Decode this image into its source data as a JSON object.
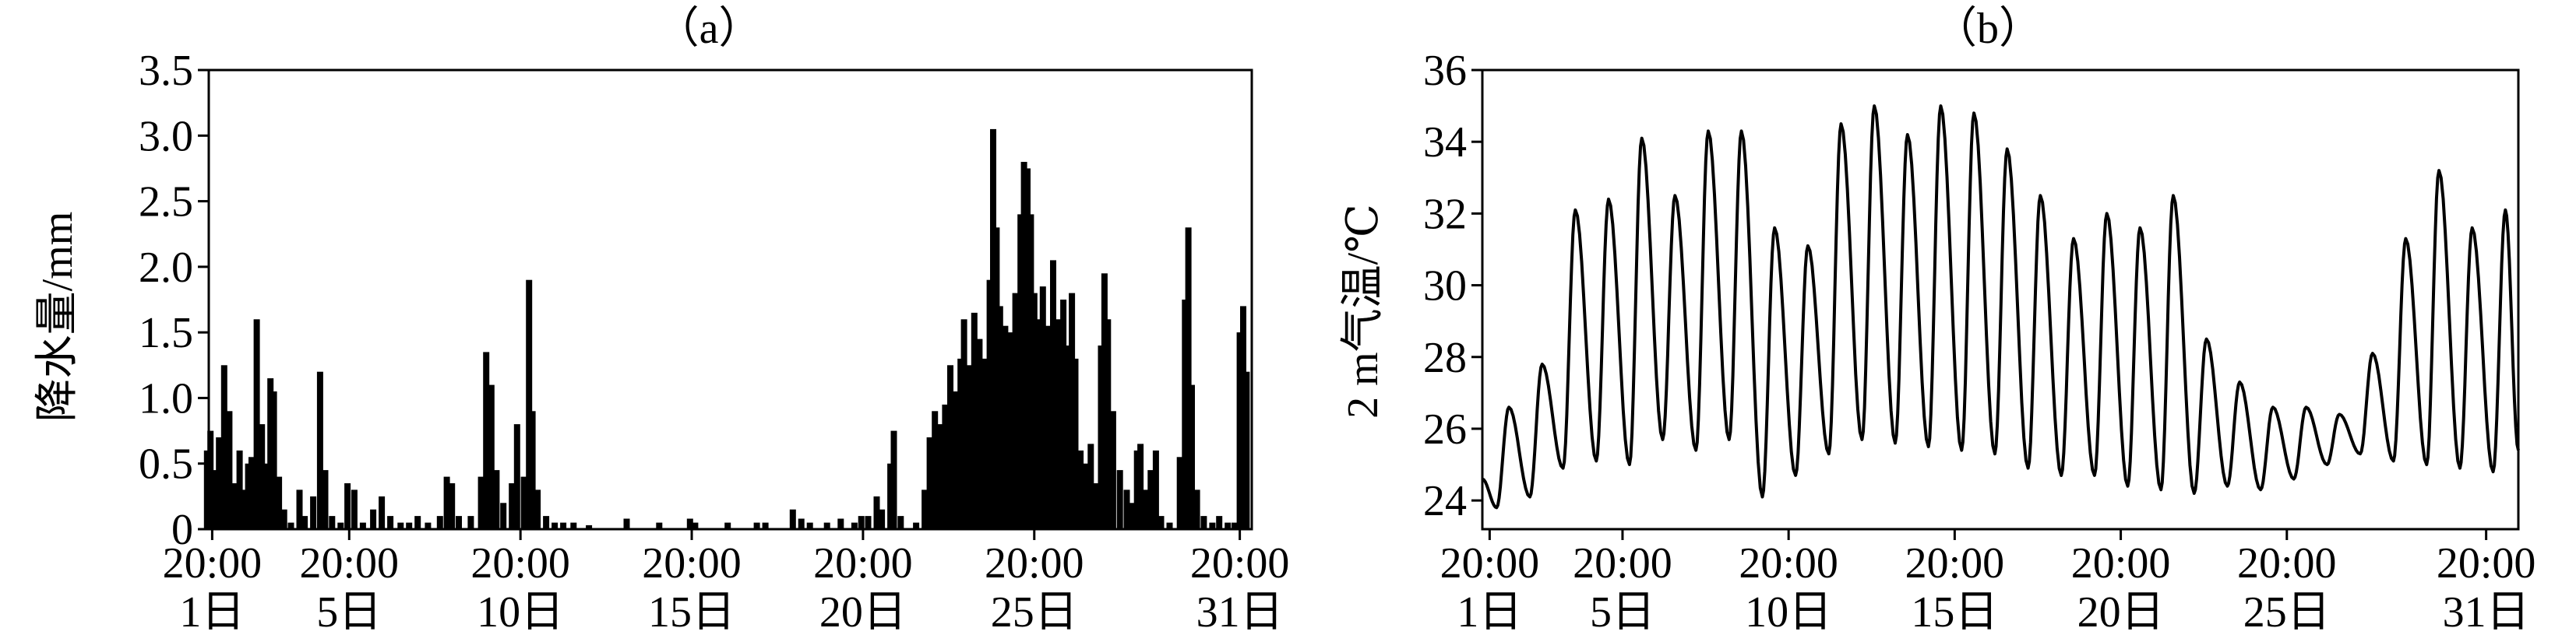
{
  "chart_data": [
    {
      "type": "bar",
      "panel_label": "（a）",
      "ylabel": "降水量/mm",
      "ylim": [
        0,
        3.5
      ],
      "yticks": [
        "0",
        "0.5",
        "1.0",
        "1.5",
        "2.0",
        "2.5",
        "3.0",
        "3.5"
      ],
      "xticks": [
        {
          "day": 1,
          "time": "20:00",
          "date": "1日"
        },
        {
          "day": 5,
          "time": "20:00",
          "date": "5日"
        },
        {
          "day": 10,
          "time": "20:00",
          "date": "10日"
        },
        {
          "day": 15,
          "time": "20:00",
          "date": "15日"
        },
        {
          "day": 20,
          "time": "20:00",
          "date": "20日"
        },
        {
          "day": 25,
          "time": "20:00",
          "date": "25日"
        },
        {
          "day": 31,
          "time": "20:00",
          "date": "31日"
        }
      ],
      "series": [
        {
          "values": [
            [
              0.85,
              0.6
            ],
            [
              0.95,
              0.75
            ],
            [
              1.05,
              0.45
            ],
            [
              1.2,
              0.7
            ],
            [
              1.35,
              1.25
            ],
            [
              1.5,
              0.9
            ],
            [
              1.65,
              0.35
            ],
            [
              1.8,
              0.6
            ],
            [
              1.95,
              0.3
            ],
            [
              2.05,
              0.5
            ],
            [
              2.15,
              0.55
            ],
            [
              2.3,
              1.6
            ],
            [
              2.45,
              0.8
            ],
            [
              2.6,
              0.5
            ],
            [
              2.7,
              1.15
            ],
            [
              2.8,
              1.05
            ],
            [
              2.95,
              0.4
            ],
            [
              3.1,
              0.15
            ],
            [
              3.3,
              0.05
            ],
            [
              3.55,
              0.3
            ],
            [
              3.7,
              0.1
            ],
            [
              3.95,
              0.25
            ],
            [
              4.15,
              1.2
            ],
            [
              4.3,
              0.45
            ],
            [
              4.5,
              0.1
            ],
            [
              4.75,
              0.05
            ],
            [
              4.95,
              0.35
            ],
            [
              5.15,
              0.3
            ],
            [
              5.4,
              0.05
            ],
            [
              5.7,
              0.15
            ],
            [
              5.95,
              0.25
            ],
            [
              6.2,
              0.1
            ],
            [
              6.5,
              0.05
            ],
            [
              6.75,
              0.05
            ],
            [
              7.0,
              0.1
            ],
            [
              7.3,
              0.05
            ],
            [
              7.65,
              0.1
            ],
            [
              7.85,
              0.4
            ],
            [
              8.0,
              0.35
            ],
            [
              8.2,
              0.1
            ],
            [
              8.55,
              0.1
            ],
            [
              8.85,
              0.4
            ],
            [
              9.0,
              1.35
            ],
            [
              9.15,
              1.1
            ],
            [
              9.3,
              0.45
            ],
            [
              9.5,
              0.2
            ],
            [
              9.75,
              0.35
            ],
            [
              9.9,
              0.8
            ],
            [
              10.1,
              0.4
            ],
            [
              10.25,
              1.9
            ],
            [
              10.35,
              0.9
            ],
            [
              10.5,
              0.3
            ],
            [
              10.75,
              0.1
            ],
            [
              11.0,
              0.05
            ],
            [
              11.25,
              0.05
            ],
            [
              11.55,
              0.05
            ],
            [
              12.0,
              0.03
            ],
            [
              13.1,
              0.08
            ],
            [
              14.05,
              0.05
            ],
            [
              14.95,
              0.08
            ],
            [
              15.1,
              0.05
            ],
            [
              16.05,
              0.05
            ],
            [
              16.9,
              0.05
            ],
            [
              17.15,
              0.05
            ],
            [
              17.95,
              0.15
            ],
            [
              18.2,
              0.08
            ],
            [
              18.45,
              0.05
            ],
            [
              18.95,
              0.05
            ],
            [
              19.35,
              0.08
            ],
            [
              19.75,
              0.05
            ],
            [
              19.95,
              0.1
            ],
            [
              20.15,
              0.1
            ],
            [
              20.4,
              0.25
            ],
            [
              20.55,
              0.15
            ],
            [
              20.8,
              0.5
            ],
            [
              20.9,
              0.75
            ],
            [
              21.1,
              0.1
            ],
            [
              21.55,
              0.05
            ],
            [
              21.8,
              0.3
            ],
            [
              21.95,
              0.7
            ],
            [
              22.1,
              0.9
            ],
            [
              22.25,
              0.8
            ],
            [
              22.4,
              0.95
            ],
            [
              22.55,
              1.25
            ],
            [
              22.7,
              1.05
            ],
            [
              22.85,
              1.3
            ],
            [
              22.95,
              1.6
            ],
            [
              23.1,
              1.25
            ],
            [
              23.25,
              1.65
            ],
            [
              23.4,
              1.45
            ],
            [
              23.55,
              1.3
            ],
            [
              23.7,
              1.9
            ],
            [
              23.8,
              3.05
            ],
            [
              23.9,
              2.3
            ],
            [
              24.0,
              1.7
            ],
            [
              24.15,
              1.55
            ],
            [
              24.3,
              1.5
            ],
            [
              24.45,
              1.8
            ],
            [
              24.6,
              2.4
            ],
            [
              24.7,
              2.8
            ],
            [
              24.8,
              2.75
            ],
            [
              24.9,
              2.4
            ],
            [
              25.0,
              1.8
            ],
            [
              25.1,
              1.6
            ],
            [
              25.25,
              1.85
            ],
            [
              25.4,
              1.55
            ],
            [
              25.55,
              2.05
            ],
            [
              25.7,
              1.6
            ],
            [
              25.85,
              1.75
            ],
            [
              26.0,
              1.4
            ],
            [
              26.1,
              1.8
            ],
            [
              26.2,
              1.3
            ],
            [
              26.35,
              0.6
            ],
            [
              26.5,
              0.5
            ],
            [
              26.65,
              0.65
            ],
            [
              26.8,
              0.35
            ],
            [
              26.95,
              1.4
            ],
            [
              27.05,
              1.95
            ],
            [
              27.15,
              1.6
            ],
            [
              27.3,
              0.9
            ],
            [
              27.5,
              0.45
            ],
            [
              27.7,
              0.3
            ],
            [
              27.85,
              0.2
            ],
            [
              28.0,
              0.6
            ],
            [
              28.1,
              0.65
            ],
            [
              28.25,
              0.3
            ],
            [
              28.4,
              0.45
            ],
            [
              28.55,
              0.6
            ],
            [
              28.7,
              0.1
            ],
            [
              28.95,
              0.05
            ],
            [
              29.25,
              0.55
            ],
            [
              29.4,
              1.75
            ],
            [
              29.5,
              2.3
            ],
            [
              29.6,
              1.1
            ],
            [
              29.75,
              0.3
            ],
            [
              29.95,
              0.1
            ],
            [
              30.2,
              0.05
            ],
            [
              30.4,
              0.1
            ],
            [
              30.65,
              0.05
            ],
            [
              30.85,
              0.05
            ],
            [
              31.0,
              1.5
            ],
            [
              31.1,
              1.7
            ],
            [
              31.2,
              1.2
            ]
          ]
        }
      ]
    },
    {
      "type": "line",
      "panel_label": "（b）",
      "ylabel": "2 m气温/℃",
      "ylim": [
        23.2,
        36
      ],
      "yticks": [
        "24",
        "26",
        "28",
        "30",
        "32",
        "34",
        "36"
      ],
      "xticks": [
        {
          "day": 1,
          "time": "20:00",
          "date": "1日"
        },
        {
          "day": 5,
          "time": "20:00",
          "date": "5日"
        },
        {
          "day": 10,
          "time": "20:00",
          "date": "10日"
        },
        {
          "day": 15,
          "time": "20:00",
          "date": "15日"
        },
        {
          "day": 20,
          "time": "20:00",
          "date": "20日"
        },
        {
          "day": 25,
          "time": "20:00",
          "date": "25日"
        },
        {
          "day": 31,
          "time": "20:00",
          "date": "31日"
        }
      ],
      "series": [
        {
          "daily": [
            {
              "max": 26.6,
              "min": 23.8
            },
            {
              "max": 27.8,
              "min": 24.1
            },
            {
              "max": 32.1,
              "min": 24.9
            },
            {
              "max": 32.4,
              "min": 25.1
            },
            {
              "max": 34.1,
              "min": 25.0
            },
            {
              "max": 32.5,
              "min": 25.7
            },
            {
              "max": 34.3,
              "min": 25.4
            },
            {
              "max": 34.3,
              "min": 25.7
            },
            {
              "max": 31.6,
              "min": 24.1
            },
            {
              "max": 31.1,
              "min": 24.7
            },
            {
              "max": 34.5,
              "min": 25.3
            },
            {
              "max": 35.0,
              "min": 25.7
            },
            {
              "max": 34.2,
              "min": 25.6
            },
            {
              "max": 35.0,
              "min": 25.5
            },
            {
              "max": 34.8,
              "min": 25.4
            },
            {
              "max": 33.8,
              "min": 25.3
            },
            {
              "max": 32.5,
              "min": 24.9
            },
            {
              "max": 31.3,
              "min": 24.7
            },
            {
              "max": 32.0,
              "min": 24.7
            },
            {
              "max": 31.6,
              "min": 24.4
            },
            {
              "max": 32.5,
              "min": 24.3
            },
            {
              "max": 28.5,
              "min": 24.2
            },
            {
              "max": 27.3,
              "min": 24.4
            },
            {
              "max": 26.6,
              "min": 24.3
            },
            {
              "max": 26.6,
              "min": 24.6
            },
            {
              "max": 26.4,
              "min": 25.0
            },
            {
              "max": 28.1,
              "min": 25.3
            },
            {
              "max": 31.3,
              "min": 25.1
            },
            {
              "max": 33.2,
              "min": 25.0
            },
            {
              "max": 31.6,
              "min": 24.9
            },
            {
              "max": 32.1,
              "min": 24.8
            }
          ]
        }
      ]
    }
  ]
}
